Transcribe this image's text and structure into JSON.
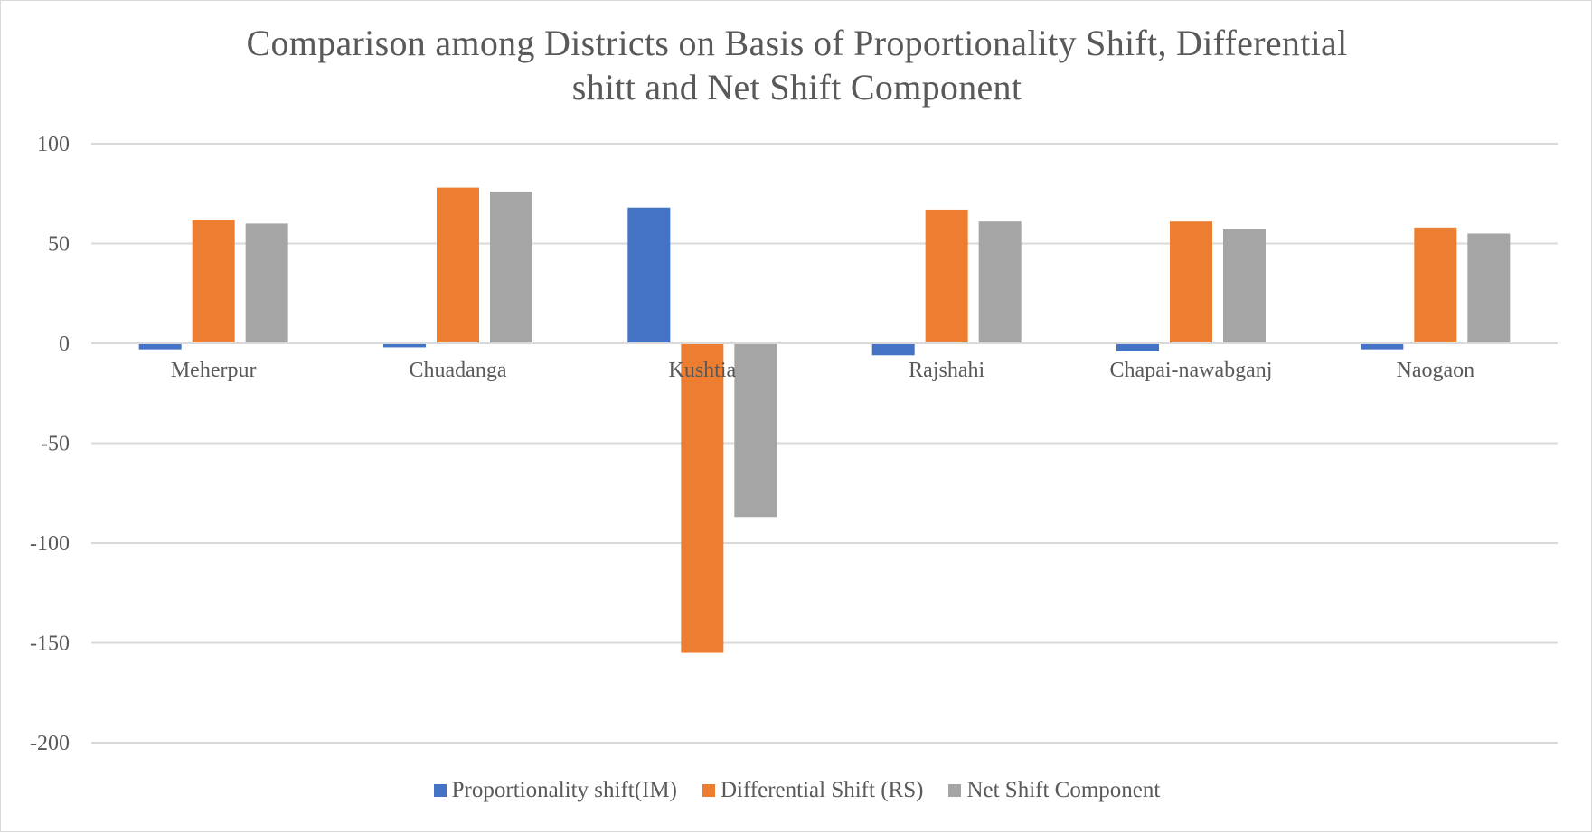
{
  "chart_data": {
    "type": "bar",
    "title_lines": [
      "Comparison among Districts on Basis of Proportionality Shift, Differential",
      "shitt and Net Shift Component"
    ],
    "categories": [
      "Meherpur",
      "Chuadanga",
      "Kushtia",
      "Rajshahi",
      "Chapai-nawabganj",
      "Naogaon"
    ],
    "series": [
      {
        "name": "Proportionality shift(IM)",
        "color": "#4472c4",
        "values": [
          -3,
          -2,
          68,
          -6,
          -4,
          -3
        ]
      },
      {
        "name": "Differential Shift (RS)",
        "color": "#ed7d31",
        "values": [
          62,
          78,
          -155,
          67,
          61,
          58
        ]
      },
      {
        "name": "Net Shift Component",
        "color": "#a5a5a5",
        "values": [
          60,
          76,
          -87,
          61,
          57,
          55
        ]
      }
    ],
    "ylim": [
      -200,
      100
    ],
    "yticks": [
      100,
      50,
      0,
      -50,
      -100,
      -150,
      -200
    ],
    "xlabel": "",
    "ylabel": "",
    "grid": true,
    "legend_position": "bottom"
  }
}
